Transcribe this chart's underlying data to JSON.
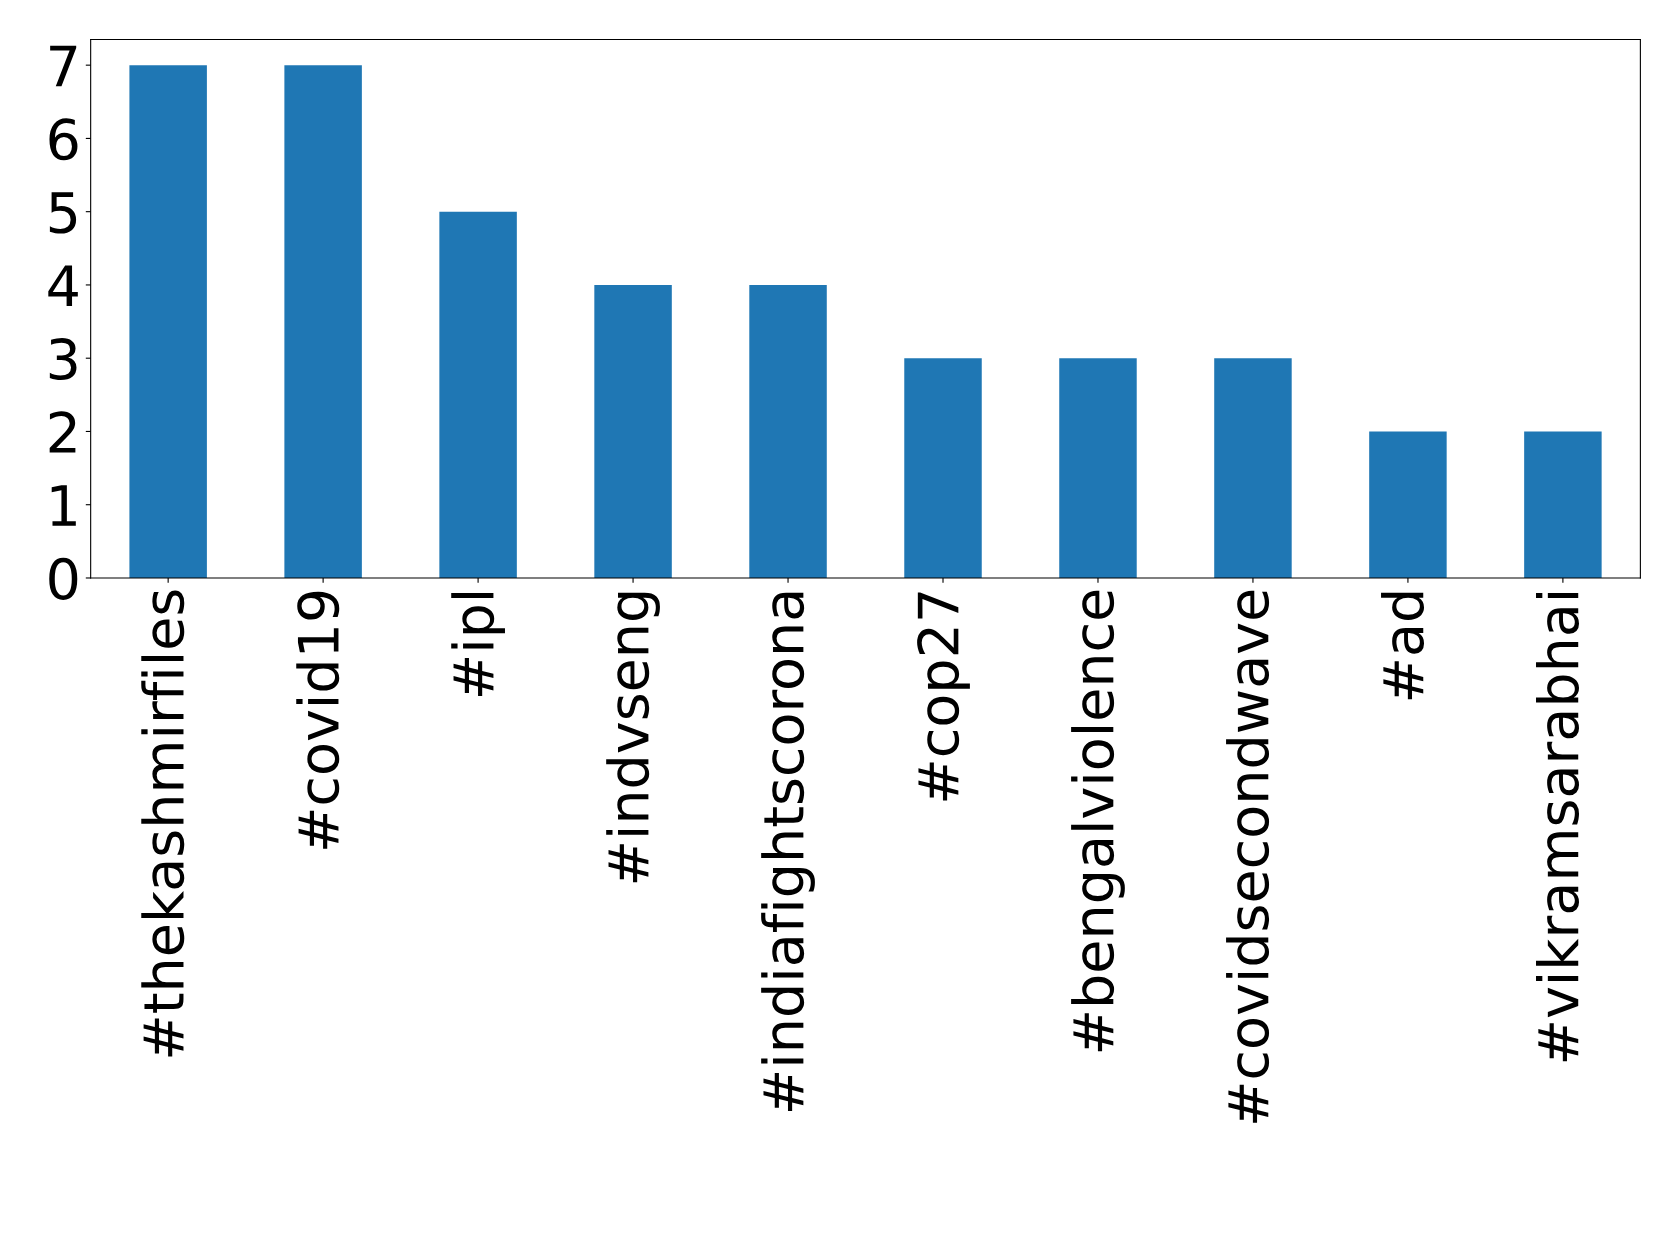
{
  "chart_data": {
    "type": "bar",
    "categories": [
      "#thekashmirfiles",
      "#covid19",
      "#ipl",
      "#indvseng",
      "#indiafightscorona",
      "#cop27",
      "#bengalviolence",
      "#covidsecondwave",
      "#ad",
      "#vikramsarabhai"
    ],
    "values": [
      7,
      7,
      5,
      4,
      4,
      3,
      3,
      3,
      2,
      2
    ],
    "color": "#1f77b4",
    "ylim": [
      0,
      7.35
    ],
    "yticks": [
      0,
      1,
      2,
      3,
      4,
      5,
      6,
      7
    ],
    "grid": false,
    "legend": false
  }
}
